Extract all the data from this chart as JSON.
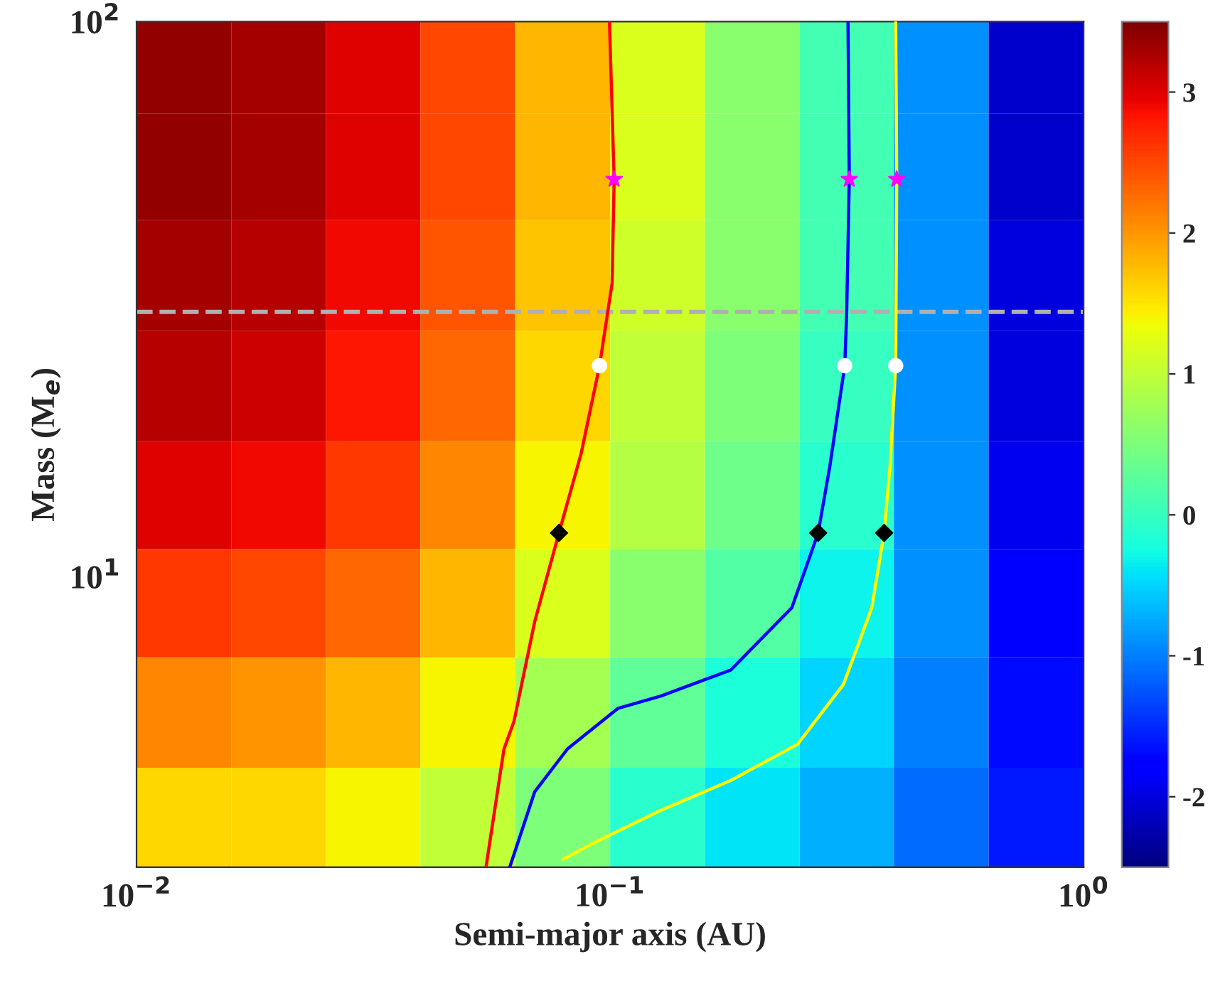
{
  "chart_data": {
    "type": "heatmap",
    "xlabel": "Semi-major axis (AU)",
    "ylabel": "Mass (M$_{e}$)",
    "x": [
      0.0126,
      0.02,
      0.0316,
      0.05,
      0.0794,
      0.126,
      0.2,
      0.316,
      0.5,
      0.794
    ],
    "y": [
      85,
      55,
      35,
      22,
      14,
      9,
      5.7,
      3.6
    ],
    "cells": [
      [
        3.4,
        3.3,
        3.0,
        2.5,
        1.8,
        1.2,
        0.6,
        0.1,
        -0.9,
        -2.1
      ],
      [
        3.4,
        3.3,
        3.0,
        2.5,
        1.8,
        1.2,
        0.6,
        0.1,
        -0.9,
        -2.1
      ],
      [
        3.3,
        3.2,
        2.9,
        2.4,
        1.7,
        1.1,
        0.6,
        0.1,
        -0.9,
        -2.0
      ],
      [
        3.2,
        3.1,
        2.8,
        2.3,
        1.6,
        1.0,
        0.5,
        0.0,
        -0.9,
        -2.0
      ],
      [
        3.0,
        2.9,
        2.6,
        2.1,
        1.4,
        0.9,
        0.4,
        -0.1,
        -0.9,
        -1.9
      ],
      [
        2.6,
        2.5,
        2.3,
        1.8,
        1.2,
        0.6,
        0.2,
        -0.3,
        -0.9,
        -1.8
      ],
      [
        2.1,
        2.0,
        1.8,
        1.4,
        0.8,
        0.3,
        -0.2,
        -0.5,
        -1.0,
        -1.7
      ],
      [
        1.6,
        1.6,
        1.4,
        1.0,
        0.5,
        -0.1,
        -0.4,
        -0.7,
        -1.1,
        -1.6
      ]
    ],
    "clim": [
      -2.5,
      3.5
    ],
    "cticks": [
      -2,
      -1,
      0,
      1,
      2,
      3
    ],
    "log": "xy",
    "xlim": [
      0.01,
      1
    ],
    "ylim": [
      3,
      100
    ],
    "xticks": [
      {
        "value": 0.01,
        "label": "10$^{−2}$"
      },
      {
        "value": 0.1,
        "label": "10$^{−1}$"
      },
      {
        "value": 1,
        "label": "10$^{0}$"
      }
    ],
    "yticks": [
      {
        "value": 10,
        "label": "10$^{1}$"
      },
      {
        "value": 100,
        "label": "10$^{2}$"
      }
    ],
    "series": [
      {
        "type": "line",
        "color": "#ff0000",
        "line_style": "solid",
        "x": [
          0.0997,
          0.102,
          0.101,
          0.095,
          0.0869,
          0.078,
          0.0693,
          0.0627,
          0.0597,
          0.0547
        ],
        "values": [
          100,
          52,
          33.8,
          24,
          16.7,
          12,
          8.3,
          5.5,
          4.9,
          3
        ]
      },
      {
        "type": "line",
        "color": "#0000ff",
        "line_style": "solid",
        "x": [
          0.318,
          0.32,
          0.316,
          0.313,
          0.291,
          0.275,
          0.242,
          0.18,
          0.128,
          0.104,
          0.0813,
          0.0693,
          0.0614
        ],
        "values": [
          100,
          52,
          30,
          24,
          15.8,
          12,
          8.8,
          6.8,
          6.1,
          5.8,
          4.9,
          4.1,
          3
        ]
      },
      {
        "type": "line",
        "color": "#ffff00",
        "line_style": "solid",
        "x": [
          0.401,
          0.403,
          0.401,
          0.39,
          0.379,
          0.357,
          0.311,
          0.249,
          0.18,
          0.128,
          0.0912,
          0.0796
        ],
        "values": [
          100,
          52,
          24,
          15.8,
          12,
          8.8,
          6.4,
          5.0,
          4.3,
          3.8,
          3.3,
          3.1
        ]
      },
      {
        "type": "scatter",
        "marker": "star",
        "color": "#ff00ff",
        "x": [
          0.102,
          0.32,
          0.403
        ],
        "values": [
          52,
          52,
          52
        ]
      },
      {
        "type": "scatter",
        "marker": "circle",
        "color": "#ffffff",
        "x": [
          0.095,
          0.313,
          0.401
        ],
        "values": [
          24,
          24,
          24
        ]
      },
      {
        "type": "scatter",
        "marker": "diamond",
        "color": "#000000",
        "x": [
          0.078,
          0.275,
          0.379
        ],
        "values": [
          12,
          12,
          12
        ]
      }
    ],
    "ref_lines": [
      {
        "axis": "y",
        "value": 30,
        "color": "#b0b0b0",
        "line_style": "dashed"
      }
    ]
  }
}
